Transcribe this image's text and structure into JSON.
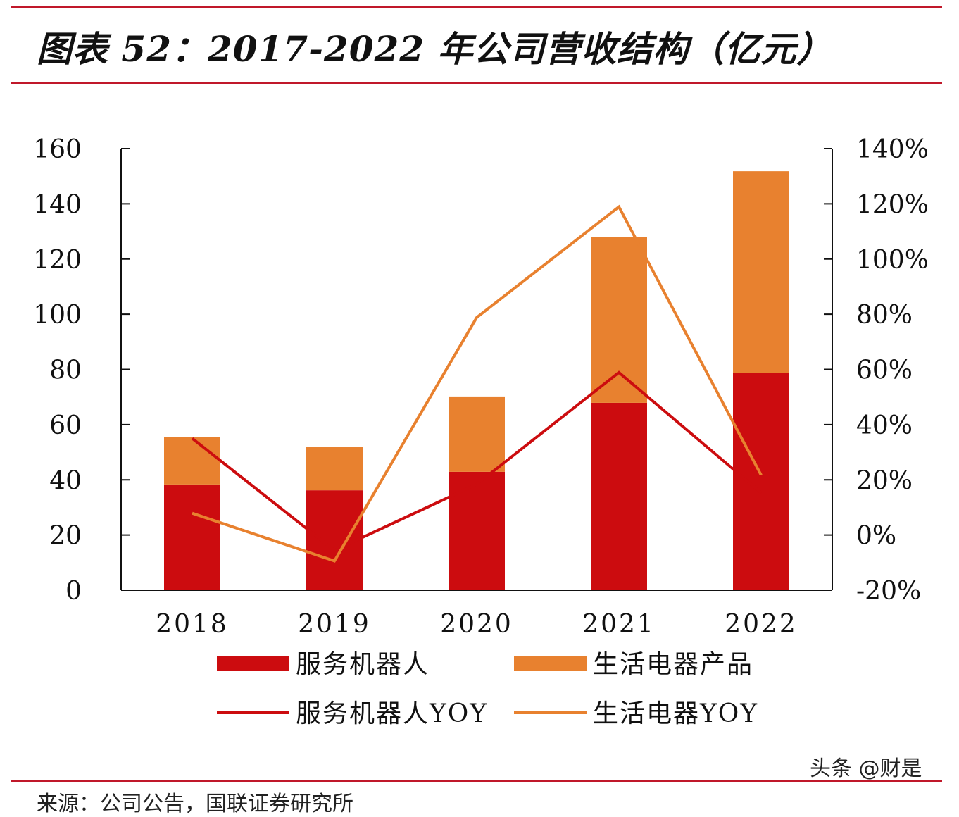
{
  "title": "图表 52：2017-2022 年公司营收结构（亿元）",
  "source": "来源：公司公告，国联证券研究所",
  "watermark": "头条 @财是",
  "chart_data": {
    "type": "bar",
    "stacked": true,
    "title": "图表 52：2017-2022 年公司营收结构（亿元）",
    "categories": [
      "2018",
      "2019",
      "2020",
      "2021",
      "2022"
    ],
    "ylim": [
      0,
      160
    ],
    "y_ticks": [
      "0",
      "20",
      "40",
      "60",
      "80",
      "100",
      "120",
      "140",
      "160"
    ],
    "y2lim": [
      -20,
      140
    ],
    "y2_ticks": [
      "-20%",
      "0%",
      "20%",
      "40%",
      "60%",
      "80%",
      "100%",
      "120%",
      "140%"
    ],
    "grid": false,
    "legend_placement": "bottom",
    "series": [
      {
        "name": "服务机器人",
        "type": "bar",
        "axis": "left",
        "color": "#cc0c0f",
        "values": [
          38.3,
          36.2,
          42.9,
          67.9,
          78.6
        ]
      },
      {
        "name": "生活电器产品",
        "type": "bar",
        "axis": "left",
        "color": "#e8812f",
        "values": [
          17.1,
          15.6,
          27.3,
          60.2,
          73.2
        ]
      },
      {
        "name": "服务机器人YOY",
        "type": "line",
        "axis": "right",
        "color": "#cc0c0f",
        "values": [
          35.0,
          -5.6,
          18.4,
          58.9,
          15.3
        ]
      },
      {
        "name": "生活电器YOY",
        "type": "line",
        "axis": "right",
        "color": "#e8812f",
        "values": [
          7.9,
          -9.4,
          78.8,
          118.9,
          21.7
        ]
      }
    ]
  }
}
